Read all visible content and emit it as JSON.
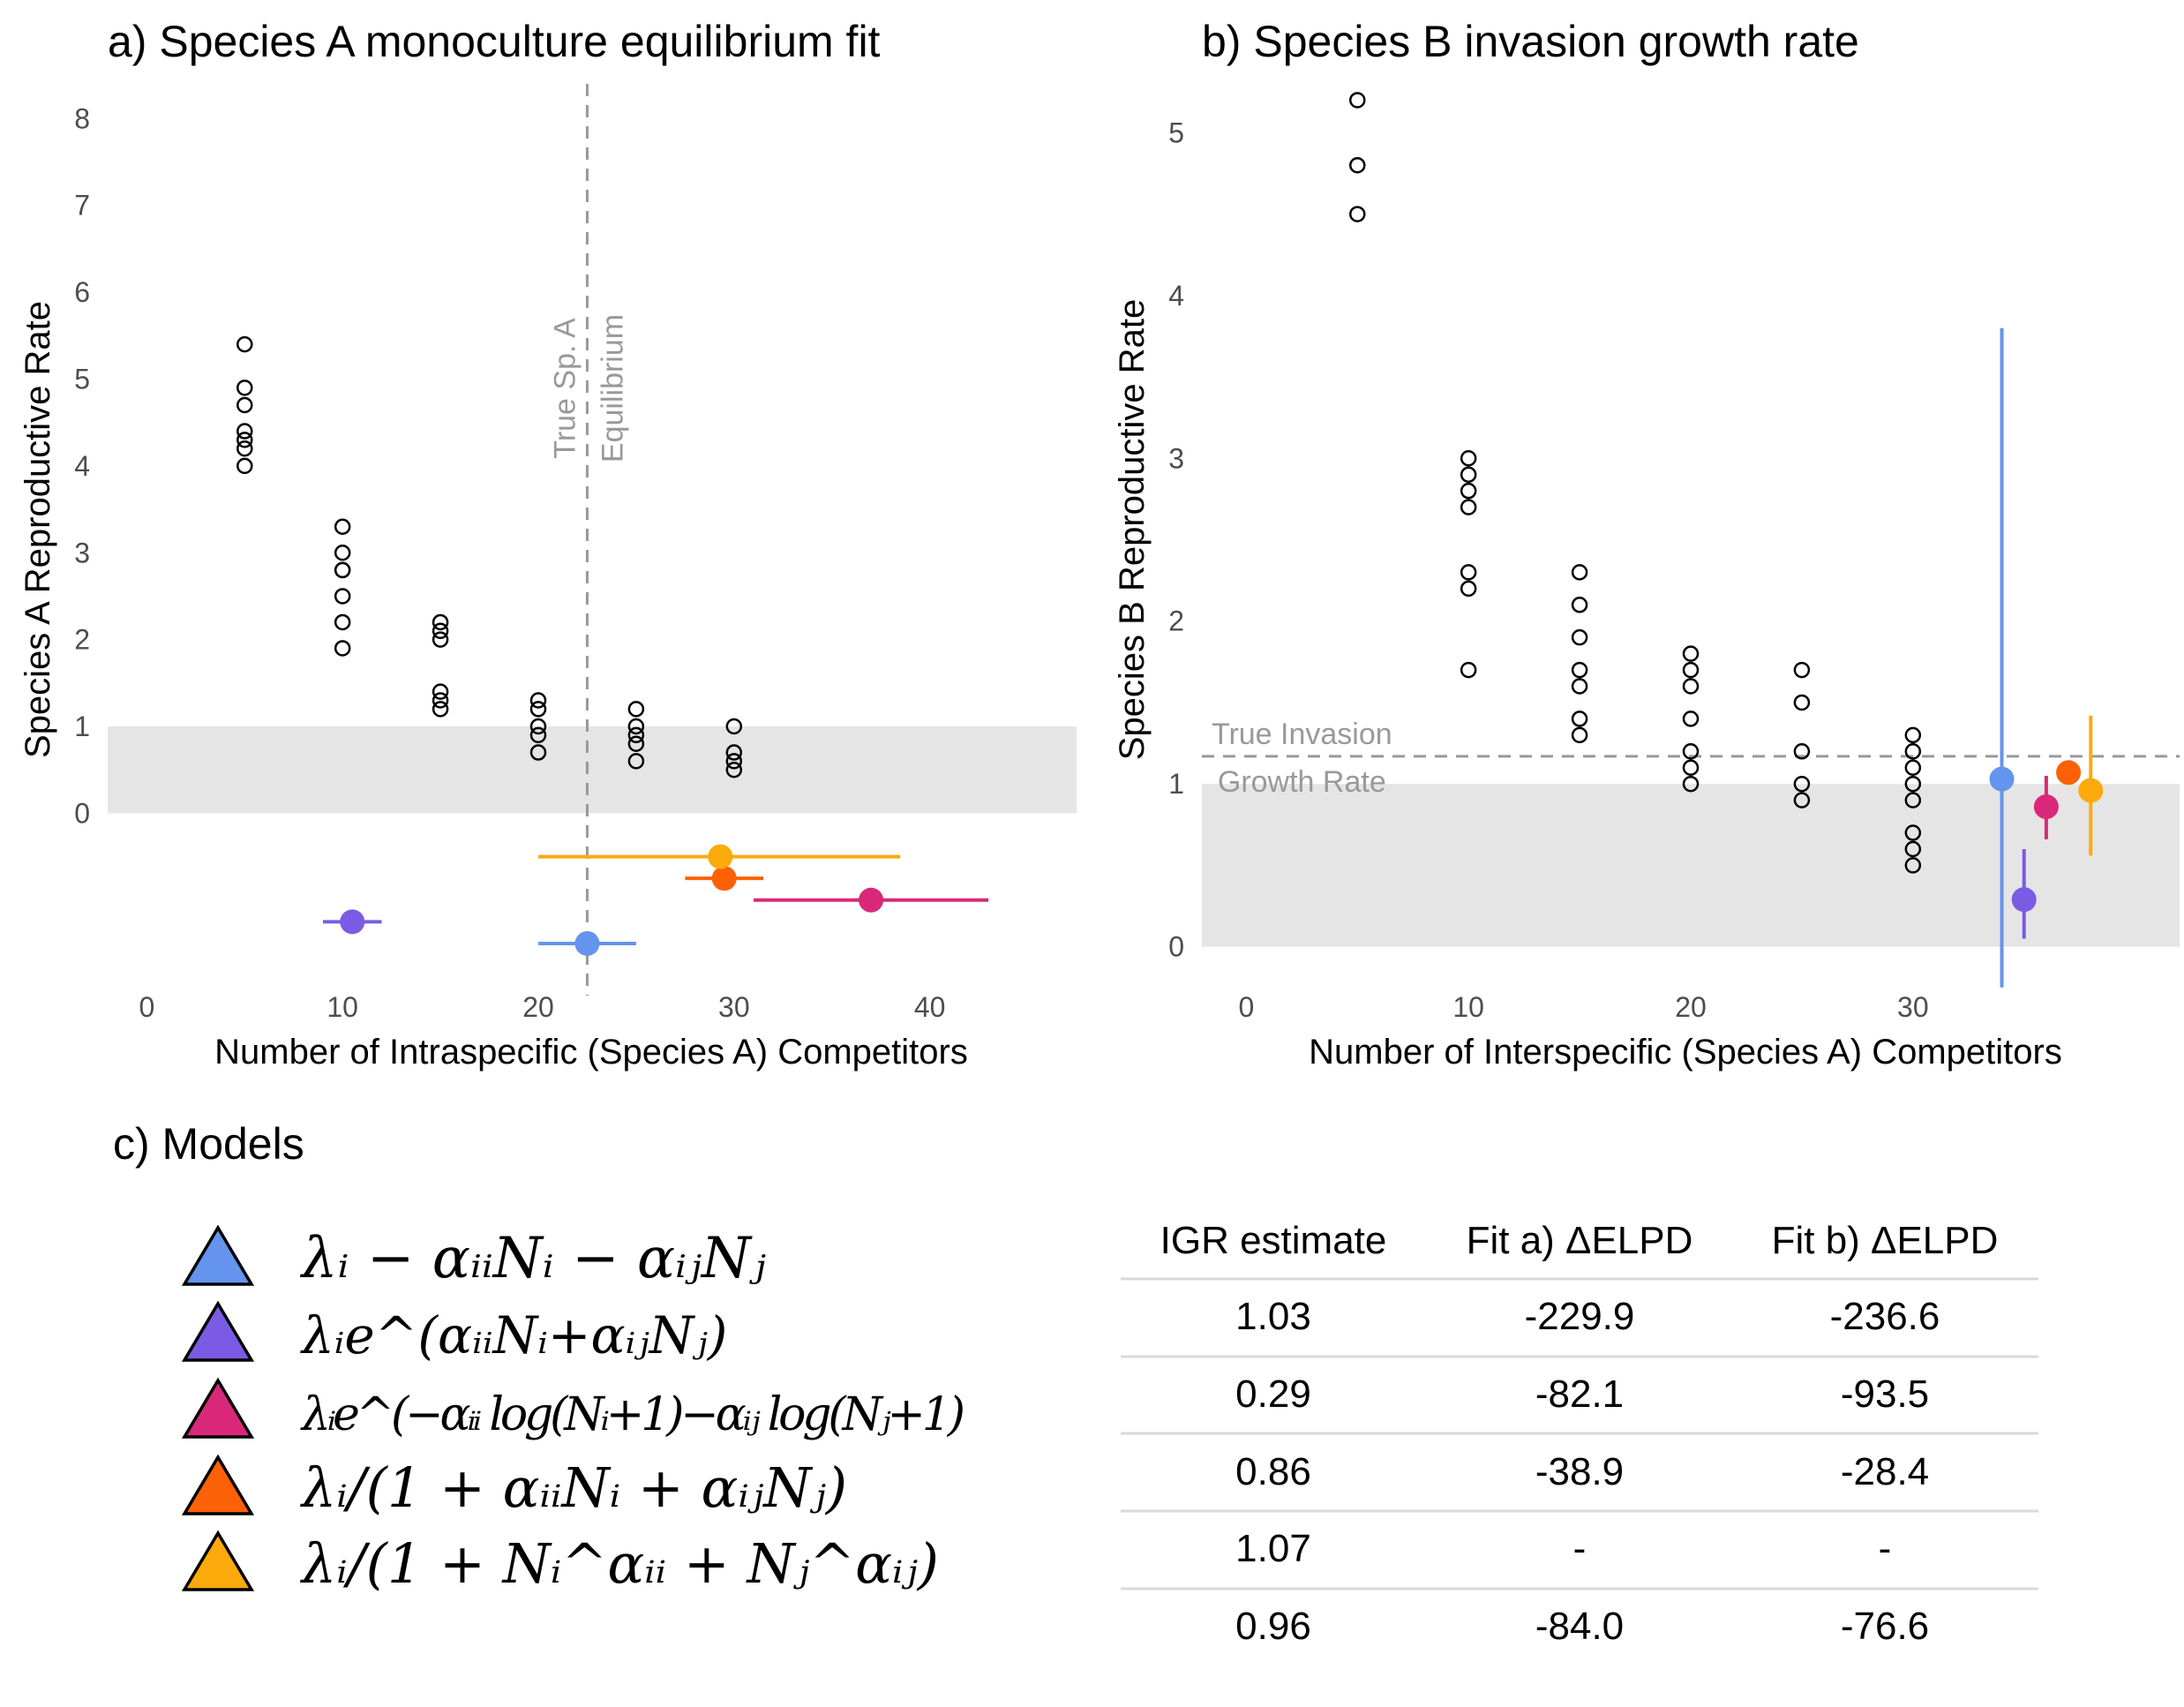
{
  "colors": {
    "linear": "#6494ED",
    "exponential": "#7B5BE3",
    "log_exponential": "#D9287A",
    "beverton_holt": "#FC6107",
    "power": "#FCAA0C",
    "band": "#e5e5e5",
    "reference_line": "#999999"
  },
  "chart_data": [
    {
      "id": "panel-a",
      "type": "scatter",
      "title": "a) Species A monoculture equilibrium fit",
      "xlabel": "Number of Intraspecific (Species A) Competitors",
      "ylabel": "Species A Reproductive Rate",
      "xlim": [
        -2,
        47.5
      ],
      "ylim": [
        -2.1,
        8.4
      ],
      "xticks": [
        0,
        10,
        20,
        30,
        40
      ],
      "yticks": [
        0,
        1,
        2,
        3,
        4,
        5,
        6,
        7,
        8
      ],
      "band": {
        "y": [
          0,
          1
        ]
      },
      "grid": false,
      "reference_line": {
        "orientation": "vertical",
        "x": 22.5,
        "label_lines": [
          "True Sp. A",
          "Equilibrium"
        ]
      },
      "points": [
        {
          "x": 5,
          "y": [
            4.0,
            4.2,
            4.3,
            4.4,
            4.7,
            4.9,
            5.4
          ]
        },
        {
          "x": 10,
          "y": [
            1.9,
            2.2,
            2.5,
            2.8,
            2.8,
            3.0,
            3.3
          ]
        },
        {
          "x": 15,
          "y": [
            1.2,
            1.3,
            1.4,
            2.0,
            2.1,
            2.2
          ]
        },
        {
          "x": 20,
          "y": [
            0.7,
            0.9,
            1.0,
            1.2,
            1.3
          ]
        },
        {
          "x": 25,
          "y": [
            0.6,
            0.8,
            0.9,
            1.0,
            1.2
          ]
        },
        {
          "x": 30,
          "y": [
            0.5,
            0.6,
            0.7,
            1.0
          ]
        }
      ],
      "estimates": [
        {
          "model": "linear",
          "x": 22.5,
          "xmin": 20.0,
          "xmax": 25.0,
          "y": -1.5
        },
        {
          "model": "exponential",
          "x": 10.5,
          "xmin": 9.0,
          "xmax": 12.0,
          "y": -1.25
        },
        {
          "model": "log_exponential",
          "x": 37.0,
          "xmin": 31.0,
          "xmax": 43.0,
          "y": -1.0
        },
        {
          "model": "beverton_holt",
          "x": 29.5,
          "xmin": 27.5,
          "xmax": 31.5,
          "y": -0.75
        },
        {
          "model": "power",
          "x": 29.3,
          "xmin": 20.0,
          "xmax": 38.5,
          "y": -0.5
        }
      ]
    },
    {
      "id": "panel-b",
      "type": "scatter",
      "title": "b) Species B invasion growth rate",
      "xlabel": "Number of Interspecific (Species A) Competitors",
      "ylabel": "Species B Reproductive Rate",
      "xlim": [
        -2,
        42
      ],
      "ylim": [
        -0.3,
        5.3
      ],
      "xticks": [
        0,
        10,
        20,
        30
      ],
      "yticks": [
        0,
        1,
        2,
        3,
        4,
        5
      ],
      "band": {
        "y": [
          0,
          1
        ]
      },
      "grid": false,
      "reference_line": {
        "orientation": "horizontal",
        "y": 1.17,
        "label_lines": [
          "True Invasion",
          "Growth Rate"
        ]
      },
      "points": [
        {
          "x": 5,
          "y": [
            4.5,
            4.8,
            5.2
          ]
        },
        {
          "x": 10,
          "y": [
            1.7,
            2.2,
            2.3,
            2.7,
            2.8,
            2.9,
            3.0
          ]
        },
        {
          "x": 15,
          "y": [
            1.3,
            1.4,
            1.6,
            1.7,
            1.9,
            2.1,
            2.3
          ]
        },
        {
          "x": 20,
          "y": [
            1.0,
            1.1,
            1.2,
            1.4,
            1.6,
            1.7,
            1.8
          ]
        },
        {
          "x": 25,
          "y": [
            0.9,
            1.0,
            1.2,
            1.5,
            1.7
          ]
        },
        {
          "x": 30,
          "y": [
            0.5,
            0.6,
            0.7,
            0.9,
            1.0,
            1.1,
            1.2,
            1.3
          ]
        }
      ],
      "estimates": [
        {
          "model": "linear",
          "x": 34.0,
          "y": 1.03,
          "ymin": -0.25,
          "ymax": 3.8
        },
        {
          "model": "exponential",
          "x": 35.0,
          "y": 0.29,
          "ymin": 0.05,
          "ymax": 0.6
        },
        {
          "model": "log_exponential",
          "x": 36.0,
          "y": 0.86,
          "ymin": 0.66,
          "ymax": 1.05
        },
        {
          "model": "beverton_holt",
          "x": 37.0,
          "y": 1.07,
          "ymin": 1.02,
          "ymax": 1.12
        },
        {
          "model": "power",
          "x": 38.0,
          "y": 0.96,
          "ymin": 0.56,
          "ymax": 1.42
        }
      ]
    },
    {
      "id": "panel-c",
      "type": "table",
      "title": "c) Models",
      "models": [
        {
          "key": "linear",
          "formula": "λᵢ − αᵢᵢNᵢ − αᵢⱼNⱼ"
        },
        {
          "key": "exponential",
          "formula": "λᵢe^(αᵢᵢNᵢ+αᵢⱼNⱼ)"
        },
        {
          "key": "log_exponential",
          "formula": "λᵢe^(−αᵢᵢ log(Nᵢ+1)−αᵢⱼ log(Nⱼ+1)"
        },
        {
          "key": "beverton_holt",
          "formula": "λᵢ/(1 + αᵢᵢNᵢ + αᵢⱼNⱼ)"
        },
        {
          "key": "power",
          "formula": "λᵢ/(1 + Nᵢ^αᵢᵢ + Nⱼ^αᵢⱼ)"
        }
      ],
      "columns": [
        "IGR estimate",
        "Fit a) ΔELPD",
        "Fit b) ΔELPD"
      ],
      "rows": [
        [
          "1.03",
          "-229.9",
          "-236.6"
        ],
        [
          "0.29",
          "-82.1",
          "-93.5"
        ],
        [
          "0.86",
          "-38.9",
          "-28.4"
        ],
        [
          "1.07",
          "-",
          "-"
        ],
        [
          "0.96",
          "-84.0",
          "-76.6"
        ]
      ]
    }
  ]
}
